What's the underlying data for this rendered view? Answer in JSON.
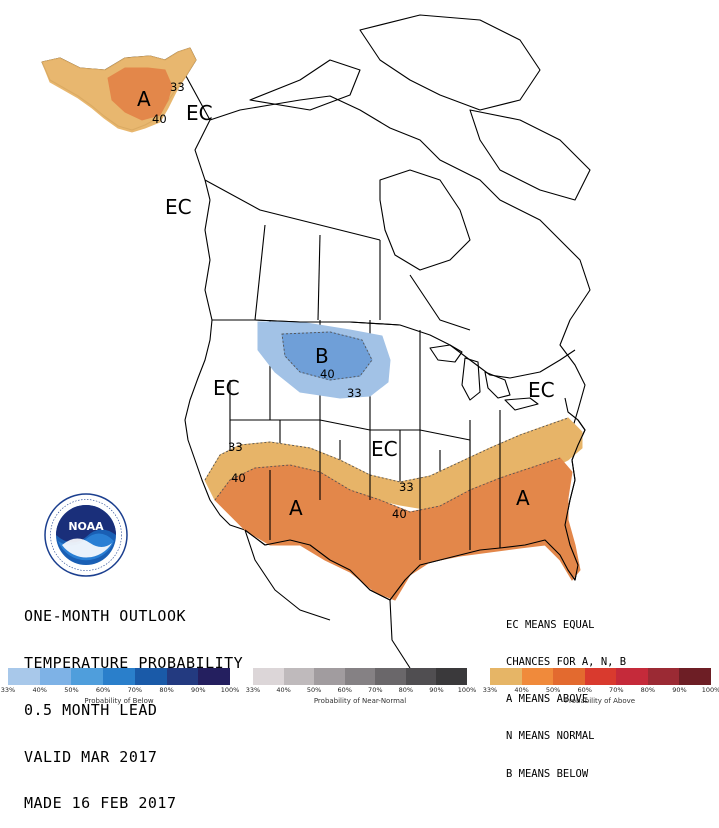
{
  "title_lines": [
    "ONE-MONTH OUTLOOK",
    "TEMPERATURE PROBABILITY",
    "0.5 MONTH LEAD",
    "VALID MAR 2017",
    "MADE 16 FEB 2017"
  ],
  "legend_lines": [
    "EC MEANS EQUAL",
    "CHANCES FOR A, N, B",
    "A MEANS ABOVE",
    "N MEANS NORMAL",
    "B MEANS BELOW"
  ],
  "map_labels": {
    "ec_alaska": "EC",
    "ec_canada_west": "EC",
    "ec_west": "EC",
    "ec_central": "EC",
    "ec_east": "EC",
    "a_alaska": "A",
    "a_southwest": "A",
    "a_southeast": "A",
    "b_north": "B",
    "c_alaska_33": "33",
    "c_alaska_40": "40",
    "c_north_40": "40",
    "c_north_33": "33",
    "c_sw_33": "33",
    "c_sw_40": "40",
    "c_central_33": "33",
    "c_central_40": "40"
  },
  "colors": {
    "above_33": "#e7b468",
    "above_40": "#e3874a",
    "below_33": "#a2c2e6",
    "below_40": "#6f9fd8"
  },
  "color_bars": {
    "below": {
      "caption": "Probability of Below",
      "ticks": [
        "33%",
        "40%",
        "50%",
        "60%",
        "70%",
        "80%",
        "90%",
        "100%"
      ],
      "colors": [
        "#a8c8ea",
        "#7eb2e6",
        "#4f9edc",
        "#2a7fcb",
        "#1a5aa8",
        "#233a80",
        "#241f5f"
      ]
    },
    "near_normal": {
      "caption": "Probability of Near-Normal",
      "ticks": [
        "33%",
        "40%",
        "50%",
        "60%",
        "70%",
        "80%",
        "90%",
        "100%"
      ],
      "colors": [
        "#dcd6d8",
        "#bfbabc",
        "#a19c9f",
        "#858184",
        "#6a676a",
        "#504e51",
        "#3a393b"
      ]
    },
    "above": {
      "caption": "Probability of Above",
      "ticks": [
        "33%",
        "40%",
        "50%",
        "60%",
        "70%",
        "80%",
        "90%",
        "100%"
      ],
      "colors": [
        "#e6b566",
        "#f08a3b",
        "#e36a2f",
        "#d93a2e",
        "#c52a3a",
        "#9b2a34",
        "#6d1e25"
      ]
    }
  },
  "logo": {
    "text": "NOAA",
    "ring_text": "NATIONAL OCEANIC AND ATMOSPHERIC ADMINISTRATION · U.S. DEPARTMENT OF COMMERCE"
  }
}
